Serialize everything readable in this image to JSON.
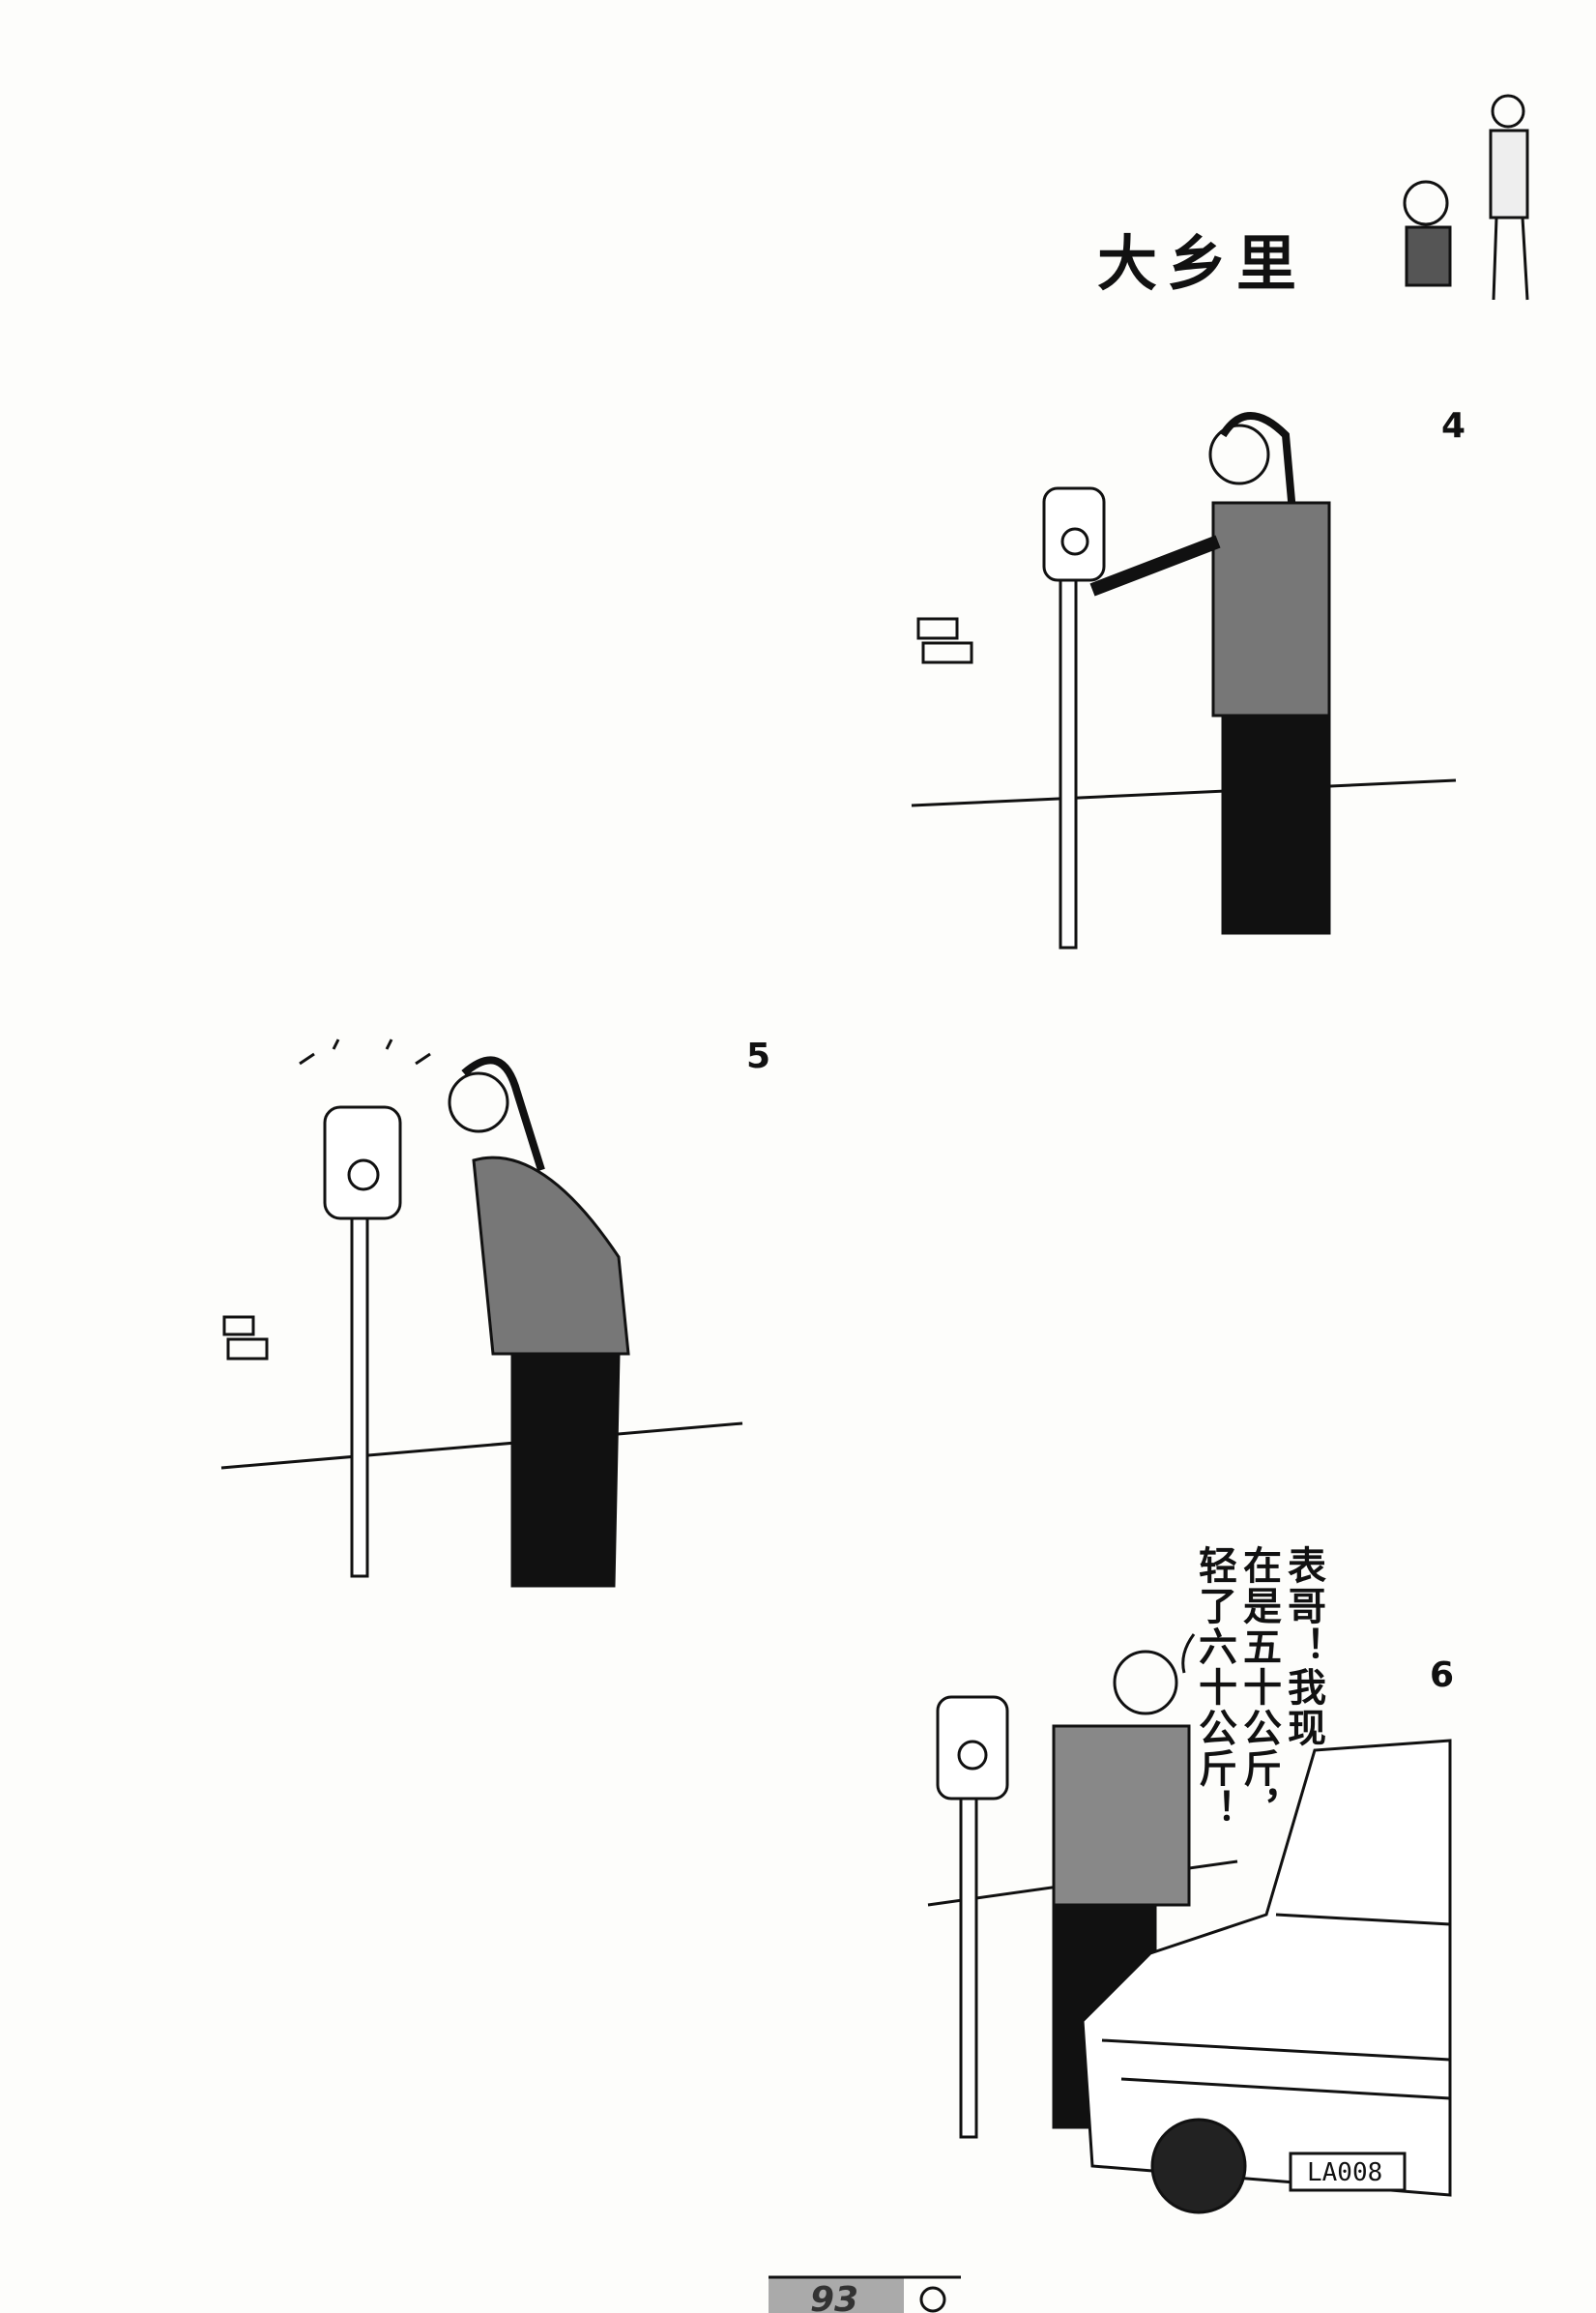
{
  "header": {
    "title": "大乡里"
  },
  "panels": [
    {
      "number": "4"
    },
    {
      "number": "5"
    },
    {
      "number": "6",
      "speech": [
        "表哥！我现",
        "在是五十公斤，",
        "轻了六十公斤！"
      ],
      "license_plate": "LA008"
    }
  ],
  "footer": {
    "page_number": "93"
  }
}
